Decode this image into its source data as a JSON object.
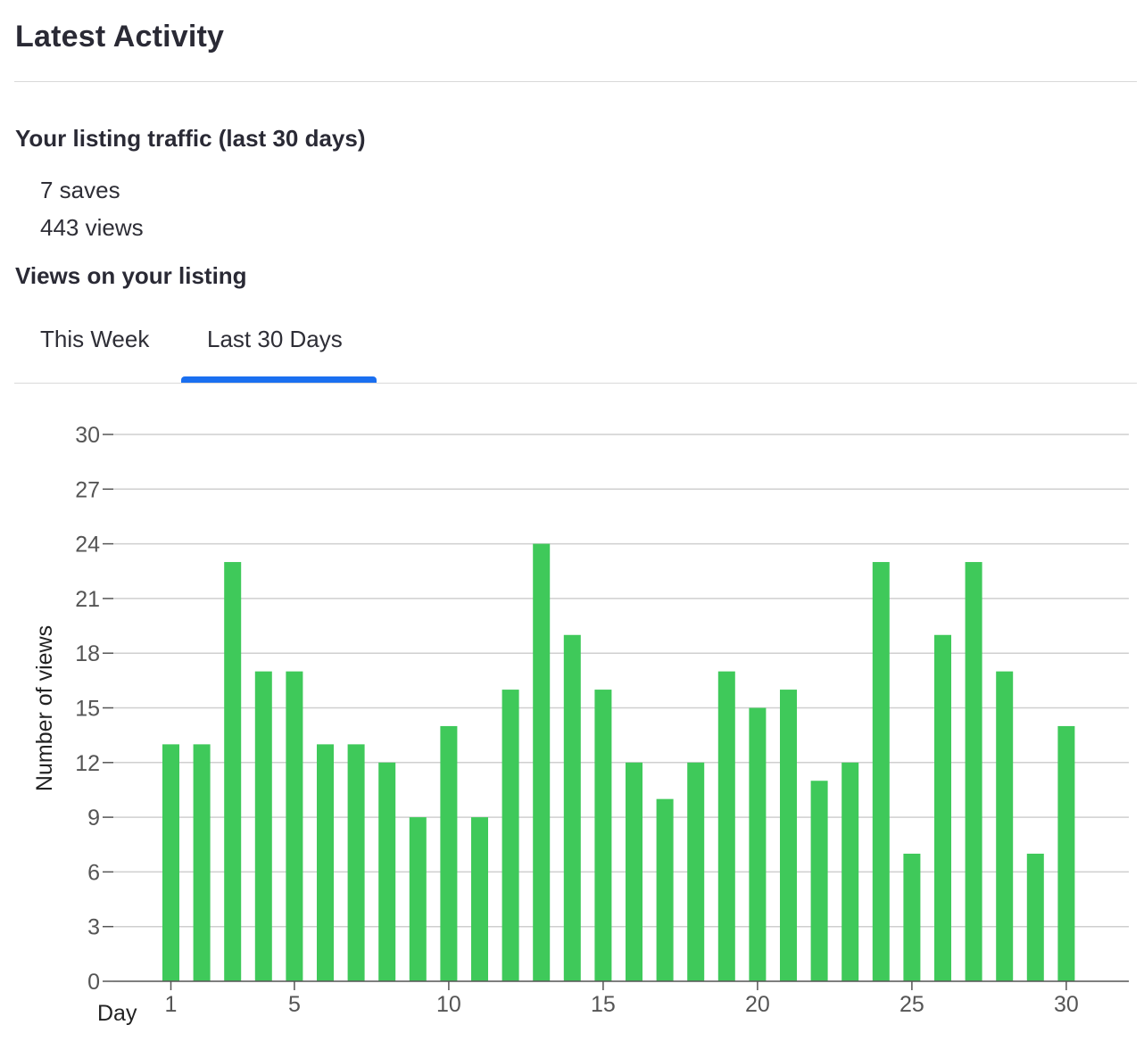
{
  "header": {
    "title": "Latest Activity"
  },
  "traffic": {
    "title": "Your listing traffic (last 30 days)",
    "saves": "7 saves",
    "views": "443 views"
  },
  "views_section": {
    "title": "Views on your listing",
    "tabs": [
      {
        "label": "This Week",
        "active": false
      },
      {
        "label": "Last 30 Days",
        "active": true
      }
    ]
  },
  "colors": {
    "bar": "#3fc95a",
    "tab_active": "#1a6ff0",
    "grid": "#cfcfcf"
  },
  "chart_data": {
    "type": "bar",
    "xlabel": "Day",
    "ylabel": "Number of views",
    "ylim": [
      0,
      30
    ],
    "yticks": [
      0,
      3,
      6,
      9,
      12,
      15,
      18,
      21,
      24,
      27,
      30
    ],
    "xticks": [
      1,
      5,
      10,
      15,
      20,
      25,
      30
    ],
    "grid": true,
    "categories": [
      1,
      2,
      3,
      4,
      5,
      6,
      7,
      8,
      9,
      10,
      11,
      12,
      13,
      14,
      15,
      16,
      17,
      18,
      19,
      20,
      21,
      22,
      23,
      24,
      25,
      26,
      27,
      28,
      29,
      30
    ],
    "values": [
      13,
      13,
      23,
      17,
      17,
      13,
      13,
      12,
      9,
      14,
      9,
      16,
      24,
      19,
      16,
      12,
      10,
      12,
      17,
      15,
      16,
      11,
      12,
      23,
      7,
      19,
      23,
      17,
      7,
      14
    ]
  }
}
